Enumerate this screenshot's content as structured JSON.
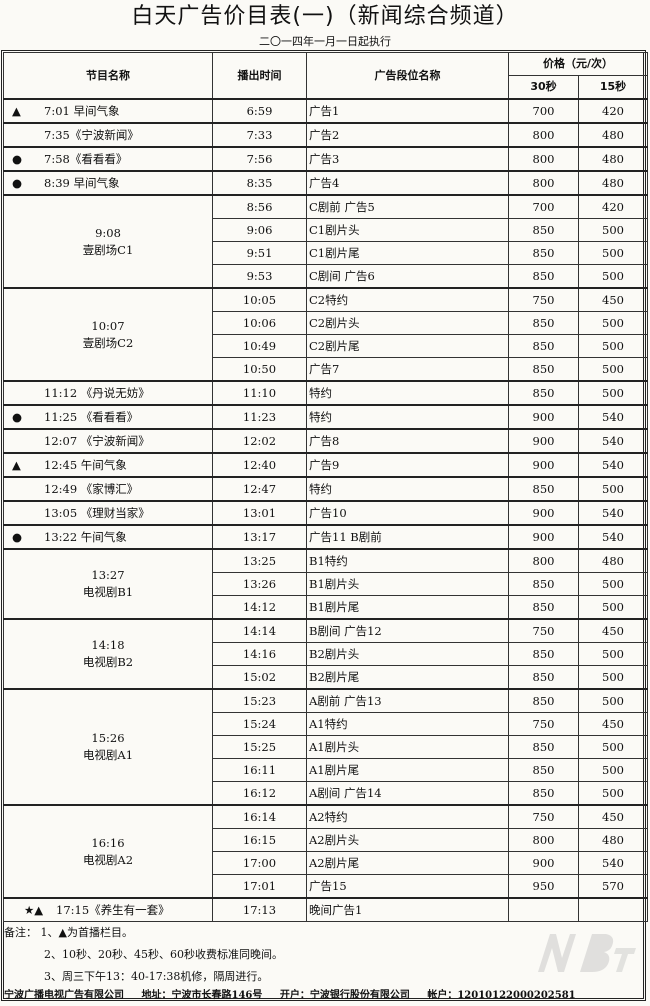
{
  "title": "白天广告价目表(一)（新闻综合频道）",
  "subtitle": "二〇一四年一月一日起执行",
  "headers": {
    "program": "节目名称",
    "air_time": "播出时间",
    "ad_slot": "广告段位名称",
    "price": "价格（元/次）",
    "s30": "30秒",
    "s15": "15秒"
  },
  "groups": [
    {
      "mark": "▲",
      "program": "7:01 早间气象",
      "slots": [
        {
          "time": "6:59",
          "ad": "广告1",
          "p30": "700",
          "p15": "420"
        }
      ]
    },
    {
      "mark": "",
      "program": "7:35《宁波新闻》",
      "slots": [
        {
          "time": "7:33",
          "ad": "广告2",
          "p30": "800",
          "p15": "480"
        }
      ]
    },
    {
      "mark": "●",
      "program": "7:58《看看看》",
      "slots": [
        {
          "time": "7:56",
          "ad": "广告3",
          "p30": "800",
          "p15": "480"
        }
      ]
    },
    {
      "mark": "●",
      "program": "8:39 早间气象",
      "slots": [
        {
          "time": "8:35",
          "ad": "广告4",
          "p30": "800",
          "p15": "480"
        }
      ]
    },
    {
      "program_time": "9:08",
      "program": "壹剧场C1",
      "slots": [
        {
          "time": "8:56",
          "ad": "C剧前 广告5",
          "p30": "700",
          "p15": "420"
        },
        {
          "time": "9:06",
          "ad": "C1剧片头",
          "p30": "850",
          "p15": "500"
        },
        {
          "time": "9:51",
          "ad": "C1剧片尾",
          "p30": "850",
          "p15": "500"
        },
        {
          "time": "9:53",
          "ad": "C剧间 广告6",
          "p30": "850",
          "p15": "500"
        }
      ]
    },
    {
      "program_time": "10:07",
      "program": "壹剧场C2",
      "slots": [
        {
          "time": "10:05",
          "ad": "C2特约",
          "p30": "750",
          "p15": "450"
        },
        {
          "time": "10:06",
          "ad": "C2剧片头",
          "p30": "850",
          "p15": "500"
        },
        {
          "time": "10:49",
          "ad": "C2剧片尾",
          "p30": "850",
          "p15": "500"
        },
        {
          "time": "10:50",
          "ad": "广告7",
          "p30": "850",
          "p15": "500"
        }
      ]
    },
    {
      "mark": "",
      "program": "11:12 《丹说无妨》",
      "slots": [
        {
          "time": "11:10",
          "ad": "特约",
          "p30": "850",
          "p15": "500"
        }
      ]
    },
    {
      "mark": "●",
      "program": "11:25 《看看看》",
      "slots": [
        {
          "time": "11:23",
          "ad": "特约",
          "p30": "900",
          "p15": "540"
        }
      ]
    },
    {
      "mark": "",
      "program": "12:07 《宁波新闻》",
      "slots": [
        {
          "time": "12:02",
          "ad": "广告8",
          "p30": "900",
          "p15": "540"
        }
      ]
    },
    {
      "mark": "▲",
      "program": "12:45 午间气象",
      "slots": [
        {
          "time": "12:40",
          "ad": "广告9",
          "p30": "900",
          "p15": "540"
        }
      ]
    },
    {
      "mark": "",
      "program": "12:49 《家博汇》",
      "slots": [
        {
          "time": "12:47",
          "ad": "特约",
          "p30": "850",
          "p15": "500"
        }
      ]
    },
    {
      "mark": "",
      "program": "13:05 《理财当家》",
      "slots": [
        {
          "time": "13:01",
          "ad": "广告10",
          "p30": "900",
          "p15": "540"
        }
      ]
    },
    {
      "mark": "●",
      "program": "13:22 午间气象",
      "slots": [
        {
          "time": "13:17",
          "ad": "广告11 B剧前",
          "p30": "900",
          "p15": "540"
        }
      ]
    },
    {
      "program_time": "13:27",
      "program": "电视剧B1",
      "slots": [
        {
          "time": "13:25",
          "ad": "B1特约",
          "p30": "800",
          "p15": "480"
        },
        {
          "time": "13:26",
          "ad": "B1剧片头",
          "p30": "850",
          "p15": "500"
        },
        {
          "time": "14:12",
          "ad": "B1剧片尾",
          "p30": "850",
          "p15": "500"
        }
      ]
    },
    {
      "program_time": "14:18",
      "program": "电视剧B2",
      "slots": [
        {
          "time": "14:14",
          "ad": "B剧间 广告12",
          "p30": "750",
          "p15": "450"
        },
        {
          "time": "14:16",
          "ad": "B2剧片头",
          "p30": "850",
          "p15": "500"
        },
        {
          "time": "15:02",
          "ad": "B2剧片尾",
          "p30": "850",
          "p15": "500"
        }
      ]
    },
    {
      "program_time": "15:26",
      "program": "电视剧A1",
      "slots": [
        {
          "time": "15:23",
          "ad": "A剧前 广告13",
          "p30": "850",
          "p15": "500"
        },
        {
          "time": "15:24",
          "ad": "A1特约",
          "p30": "750",
          "p15": "450"
        },
        {
          "time": "15:25",
          "ad": "A1剧片头",
          "p30": "850",
          "p15": "500"
        },
        {
          "time": "16:11",
          "ad": "A1剧片尾",
          "p30": "850",
          "p15": "500"
        },
        {
          "time": "16:12",
          "ad": "A剧间 广告14",
          "p30": "850",
          "p15": "500"
        }
      ]
    },
    {
      "program_time": "16:16",
      "program": "电视剧A2",
      "slots": [
        {
          "time": "16:14",
          "ad": "A2特约",
          "p30": "750",
          "p15": "450"
        },
        {
          "time": "16:15",
          "ad": "A2剧片头",
          "p30": "800",
          "p15": "480"
        },
        {
          "time": "17:00",
          "ad": "A2剧片尾",
          "p30": "900",
          "p15": "540"
        },
        {
          "time": "17:01",
          "ad": "广告15",
          "p30": "950",
          "p15": "570"
        }
      ]
    },
    {
      "mark": "★▲",
      "program": "17:15《养生有一套》",
      "wide": true,
      "slots": [
        {
          "time": "17:13",
          "ad": "晚间广告1",
          "p30": "",
          "p15": ""
        }
      ]
    }
  ],
  "notes": {
    "label": "备注：",
    "items": [
      "1、▲为首播栏目。",
      "2、10秒、20秒、45秒、60秒收费标准同晚间。",
      "3、周三下午13：40-17:38机修，隔周进行。"
    ]
  },
  "company": {
    "name": "宁波广播电视广告有限公司",
    "address": "地址：宁波市长春路146号",
    "bank": "开户：宁波银行股份有限公司",
    "account": "帐户：12010122000202581"
  },
  "watermark": "NBtv.cn 宁波广电网"
}
